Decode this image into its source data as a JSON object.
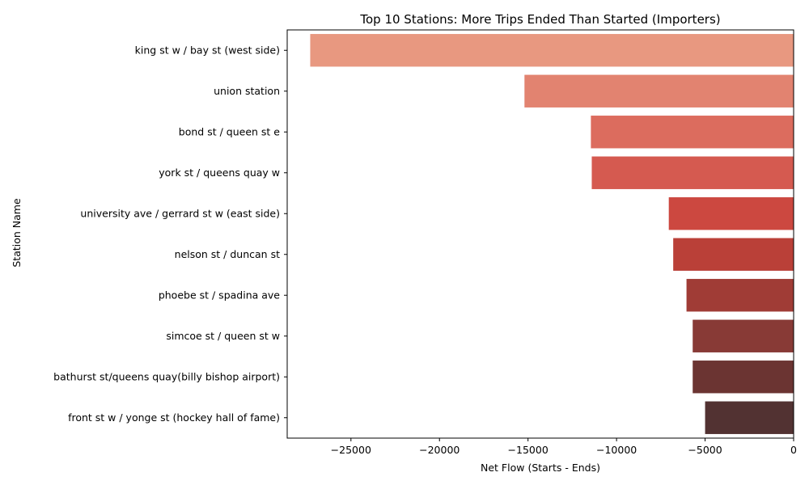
{
  "chart_data": {
    "type": "bar",
    "orientation": "horizontal",
    "title": "Top 10 Stations: More Trips Ended Than Started (Importers)",
    "xlabel": "Net Flow (Starts - Ends)",
    "ylabel": "Station Name",
    "xlim": [
      -28600,
      0
    ],
    "xticks": [
      -25000,
      -20000,
      -15000,
      -10000,
      -5000,
      0
    ],
    "xtick_labels": [
      "−25000",
      "−20000",
      "−15000",
      "−10000",
      "−5000",
      "0"
    ],
    "grid": false,
    "categories": [
      "king st w / bay st (west side)",
      "union station",
      "bond st / queen st e",
      "york st / queens quay w",
      "university ave / gerrard st w (east side)",
      "nelson st / duncan st",
      "phoebe st / spadina ave",
      "simcoe st / queen st w",
      "bathurst st/queens quay(billy bishop airport)",
      "front st w / yonge st (hockey hall of fame)"
    ],
    "values": [
      -27300,
      -15200,
      -11450,
      -11400,
      -7050,
      -6800,
      -6050,
      -5700,
      -5700,
      -5000
    ],
    "colors": [
      "#e89880",
      "#e28370",
      "#dc6c5e",
      "#d55a50",
      "#cc4840",
      "#ba4038",
      "#a03c36",
      "#883a36",
      "#6b3432",
      "#523232"
    ]
  }
}
